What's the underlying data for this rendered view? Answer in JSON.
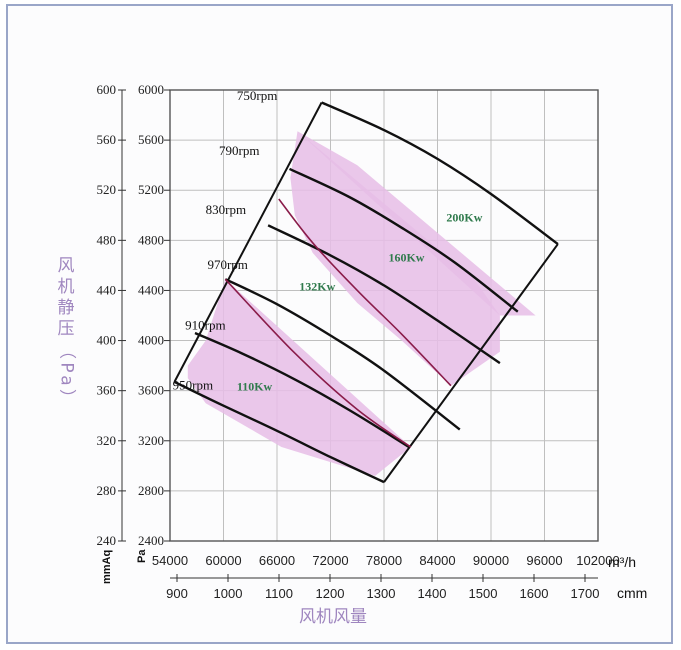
{
  "chart_data": {
    "type": "line",
    "title": "",
    "xlabel": "风机风量",
    "ylabel": "风机静压（Pa）",
    "x_primary": {
      "unit": "m³/h",
      "range": [
        54000,
        102000
      ],
      "ticks": [
        "54000",
        "60000",
        "66000",
        "72000",
        "78000",
        "84000",
        "90000",
        "96000",
        "102000"
      ]
    },
    "x_secondary": {
      "unit": "cmm",
      "ticks": [
        "900",
        "1000",
        "1100",
        "1200",
        "1300",
        "1400",
        "1500",
        "1600",
        "1700"
      ]
    },
    "y_primary": {
      "unit": "Pa",
      "range": [
        2400,
        6000
      ],
      "ticks": [
        "2400",
        "2800",
        "3200",
        "3600",
        "4000",
        "4400",
        "4800",
        "5200",
        "5600",
        "6000"
      ]
    },
    "y_secondary": {
      "unit": "mmAq",
      "ticks": [
        "240",
        "280",
        "320",
        "360",
        "400",
        "440",
        "480",
        "520",
        "560",
        "600"
      ]
    },
    "grid": true,
    "speed_curves": [
      {
        "label": "750rpm",
        "points": [
          [
            54500,
            3670
          ],
          [
            60000,
            3480
          ],
          [
            66000,
            3280
          ],
          [
            72000,
            3070
          ],
          [
            78000,
            2870
          ]
        ]
      },
      {
        "label": "790rpm",
        "points": [
          [
            56800,
            4060
          ],
          [
            62000,
            3900
          ],
          [
            68000,
            3690
          ],
          [
            74000,
            3450
          ],
          [
            80800,
            3150
          ]
        ]
      },
      {
        "label": "830rpm",
        "points": [
          [
            60200,
            4490
          ],
          [
            66000,
            4290
          ],
          [
            72000,
            4040
          ],
          [
            78000,
            3760
          ],
          [
            86500,
            3290
          ]
        ]
      },
      {
        "label": "970rpm",
        "points": [
          [
            65000,
            4920
          ],
          [
            72000,
            4680
          ],
          [
            78000,
            4440
          ],
          [
            84000,
            4160
          ],
          [
            91000,
            3820
          ]
        ]
      },
      {
        "label": "910rpm",
        "points": [
          [
            67400,
            5370
          ],
          [
            74000,
            5150
          ],
          [
            80000,
            4900
          ],
          [
            86000,
            4620
          ],
          [
            93000,
            4230
          ]
        ]
      },
      {
        "label": "950rpm",
        "points": [
          [
            71000,
            5900
          ],
          [
            78000,
            5680
          ],
          [
            84000,
            5450
          ],
          [
            90000,
            5170
          ],
          [
            97500,
            4770
          ]
        ]
      }
    ],
    "envelope": [
      [
        71000,
        5900
      ],
      [
        54500,
        3670
      ],
      [
        78000,
        2870
      ],
      [
        97500,
        4770
      ]
    ],
    "power_regions": [
      {
        "label": "110Kw",
        "polygon": [
          [
            60200,
            4490
          ],
          [
            58000,
            4000
          ],
          [
            56000,
            3800
          ],
          [
            56000,
            3700
          ],
          [
            58000,
            3500
          ],
          [
            66500,
            3150
          ],
          [
            77000,
            2920
          ],
          [
            81000,
            3150
          ]
        ]
      },
      {
        "label": "160Kw",
        "polygon": [
          [
            68300,
            5670
          ],
          [
            67500,
            5300
          ],
          [
            68000,
            5000
          ],
          [
            70000,
            4700
          ],
          [
            75000,
            4300
          ],
          [
            80000,
            4000
          ],
          [
            85500,
            3640
          ],
          [
            91000,
            3910
          ],
          [
            91000,
            4200
          ],
          [
            88000,
            4500
          ]
        ]
      },
      {
        "label": "200Kw",
        "polygon": [
          [
            68300,
            5670
          ],
          [
            91000,
            4200
          ],
          [
            95000,
            4200
          ],
          [
            80000,
            5100
          ],
          [
            75000,
            5400
          ]
        ]
      }
    ],
    "power_lines": [
      {
        "points": [
          [
            60200,
            4490
          ],
          [
            68000,
            3900
          ],
          [
            75000,
            3450
          ],
          [
            81000,
            3150
          ]
        ]
      },
      {
        "points": [
          [
            66200,
            5130
          ],
          [
            70000,
            4780
          ],
          [
            75000,
            4400
          ],
          [
            80000,
            4050
          ],
          [
            85500,
            3640
          ]
        ]
      }
    ],
    "power_labels": [
      "110Kw",
      "132Kw",
      "160Kw",
      "200Kw"
    ],
    "power_label_positions": [
      [
        61500,
        3600
      ],
      [
        68500,
        4400
      ],
      [
        78500,
        4630
      ],
      [
        85000,
        4950
      ]
    ],
    "rpm_label_positions": [
      [
        61500,
        5920
      ],
      [
        59500,
        5480
      ],
      [
        58000,
        5010
      ],
      [
        58200,
        4570
      ],
      [
        55700,
        4090
      ],
      [
        54300,
        3610
      ]
    ],
    "colors": {
      "curve": "#111111",
      "power_line": "#8a1c4a",
      "fill": "#e6bde6",
      "frame": "#9aa6c8",
      "axis_cn": "#9f86bf",
      "kw": "#2f7a4c"
    }
  }
}
